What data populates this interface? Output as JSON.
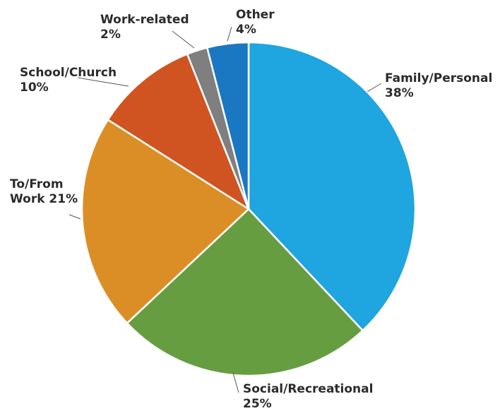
{
  "chart_data": {
    "type": "pie",
    "title": "",
    "slices": [
      {
        "name": "Family/Personal",
        "value": 38,
        "label_lines": [
          "Family/Personal",
          "38%"
        ],
        "color": "#1FA5DF"
      },
      {
        "name": "Social/Recreational",
        "value": 25,
        "label_lines": [
          "Social/Recreational",
          "25%"
        ],
        "color": "#679D41"
      },
      {
        "name": "To/From Work",
        "value": 21,
        "label_lines": [
          "To/From",
          "Work 21%"
        ],
        "color": "#DC8E26"
      },
      {
        "name": "School/Church",
        "value": 10,
        "label_lines": [
          "School/Church",
          "10%"
        ],
        "color": "#D05421"
      },
      {
        "name": "Work-related",
        "value": 2,
        "label_lines": [
          "Work-related",
          "2%"
        ],
        "color": "#7F7F7F"
      },
      {
        "name": "Other",
        "value": 4,
        "label_lines": [
          "Other",
          "4%"
        ],
        "color": "#1A78C2"
      }
    ],
    "legend": "none",
    "start_angle": "12 o'clock",
    "direction": "clockwise"
  }
}
